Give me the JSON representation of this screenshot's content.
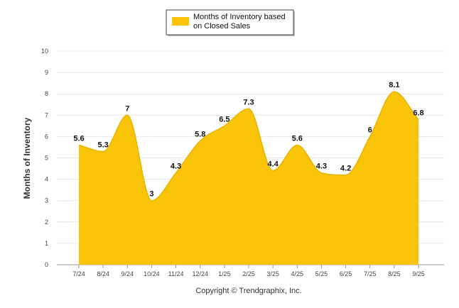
{
  "chart_data": {
    "type": "area",
    "title": "",
    "xlabel": "",
    "ylabel": "Months of Inventory",
    "ylim": [
      0,
      10
    ],
    "yticks": [
      0,
      1,
      2,
      3,
      4,
      5,
      6,
      7,
      8,
      9,
      10
    ],
    "categories": [
      "7/24",
      "8/24",
      "9/24",
      "10/24",
      "11/24",
      "12/24",
      "1/25",
      "2/25",
      "3/25",
      "4/25",
      "5/25",
      "6/25",
      "7/25",
      "8/25",
      "9/25"
    ],
    "series": [
      {
        "name": "Months of Inventory based on Closed Sales",
        "legend_lines": [
          "Months of Inventory based",
          "on Closed Sales"
        ],
        "values": [
          5.6,
          5.3,
          7,
          3,
          4.3,
          5.8,
          6.5,
          7.3,
          4.4,
          5.6,
          4.3,
          4.2,
          6,
          8.1,
          6.8
        ],
        "labels": [
          "5.6",
          "5.3",
          "7",
          "3",
          "4.3",
          "5.8",
          "6.5",
          "7.3",
          "4.4",
          "5.6",
          "4.3",
          "4.2",
          "6",
          "8.1",
          "6.8"
        ],
        "color": "#F9C308"
      }
    ],
    "grid": true,
    "legend_position": "top-center"
  },
  "footer": {
    "copyright": "Copyright © Trendgraphix, Inc."
  }
}
